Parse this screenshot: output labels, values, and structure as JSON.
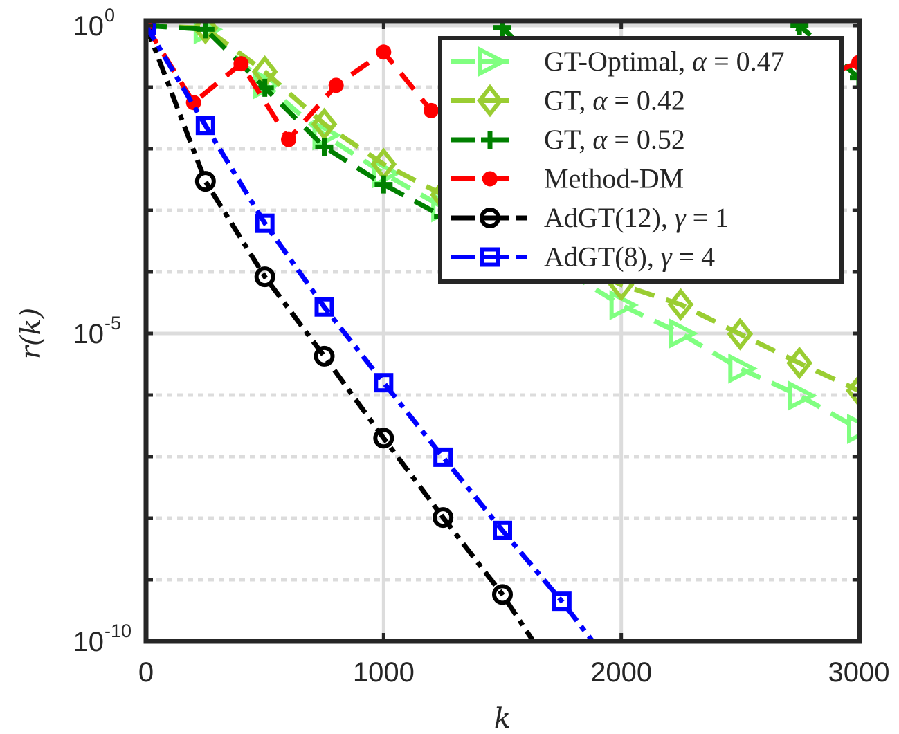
{
  "chart_data": {
    "type": "line",
    "title": "",
    "xlabel": "k",
    "ylabel": "r(k)",
    "xscale": "linear",
    "yscale": "log",
    "xlim": [
      0,
      3000
    ],
    "ylim_log10": [
      -10,
      0
    ],
    "x_ticks": [
      0,
      1000,
      2000,
      3000
    ],
    "x_tick_labels": [
      "0",
      "1000",
      "2000",
      "3000"
    ],
    "y_ticks_log10": [
      0,
      -5,
      -10
    ],
    "y_tick_labels": [
      {
        "base": "10",
        "exp": "0"
      },
      {
        "base": "10",
        "exp": "-5"
      },
      {
        "base": "10",
        "exp": "-10"
      }
    ],
    "minor_grid_log10": [
      -1,
      -2,
      -3,
      -4,
      -6,
      -7,
      -8,
      -9
    ],
    "grid": true,
    "legend_position": "top-right",
    "series": [
      {
        "name": "GT-Optimal, α = 0.47",
        "label_plain": "GT-Optimal, ",
        "label_var": "α",
        "label_rest": " = 0.47",
        "color": "#80ff80",
        "marker": "triangle-right",
        "line_style": "dashed",
        "x": [
          0,
          250,
          500,
          750,
          1000,
          1250,
          1500,
          1750,
          2000,
          2250,
          2500,
          2750,
          3000
        ],
        "log10_y": [
          0,
          -0.06,
          -0.95,
          -1.78,
          -2.4,
          -2.95,
          -3.45,
          -3.95,
          -4.54,
          -5.0,
          -5.57,
          -6.01,
          -6.55
        ]
      },
      {
        "name": "GT, α = 0.42",
        "label_plain": "GT, ",
        "label_var": "α",
        "label_rest": " = 0.42",
        "color": "#9acd32",
        "marker": "diamond",
        "line_style": "dashed",
        "x": [
          0,
          250,
          500,
          750,
          1000,
          1250,
          1500,
          1750,
          2000,
          2250,
          2500,
          2750,
          3000
        ],
        "log10_y": [
          0,
          -0.04,
          -0.75,
          -1.6,
          -2.25,
          -2.75,
          -3.3,
          -3.75,
          -4.21,
          -4.53,
          -5.01,
          -5.48,
          -5.93
        ]
      },
      {
        "name": "GT, α = 0.52",
        "label_plain": "GT, ",
        "label_var": "α",
        "label_rest": " = 0.52",
        "color": "#008000",
        "marker": "plus",
        "line_style": "dashed",
        "x": [
          0,
          250,
          500,
          750,
          1000,
          1250,
          1500,
          1750,
          2000,
          2250,
          2500,
          2750,
          3000
        ],
        "log10_y": [
          0,
          -0.06,
          -1.01,
          -1.97,
          -2.58,
          -3.1,
          -0.03,
          -1.0,
          -2.0,
          -2.6,
          -3.1,
          0.0,
          -0.85
        ]
      },
      {
        "name": "Method-DM",
        "label_plain": "Method-DM",
        "label_var": "",
        "label_rest": "",
        "color": "#ff0000",
        "marker": "circle-filled",
        "line_style": "dashed",
        "x": [
          0,
          200,
          400,
          600,
          800,
          1000,
          1200,
          1400,
          1600,
          1800,
          2000,
          2200,
          2400,
          2600,
          2800,
          3000
        ],
        "log10_y": [
          0,
          -1.25,
          -0.62,
          -1.85,
          -0.97,
          -0.43,
          -1.38,
          -0.7,
          -1.2,
          -0.9,
          -1.1,
          -0.8,
          -1.0,
          -0.7,
          -0.9,
          -0.6
        ]
      },
      {
        "name": "AdGT(12), γ = 1",
        "label_plain": "AdGT(12), ",
        "label_var": "γ",
        "label_rest": " = 1",
        "color": "#000000",
        "marker": "circle-open",
        "line_style": "dashdot",
        "x": [
          0,
          250,
          500,
          750,
          1000,
          1250,
          1500,
          1630
        ],
        "log10_y": [
          0,
          -2.53,
          -4.08,
          -5.37,
          -6.7,
          -7.99,
          -9.24,
          -10.0
        ],
        "marker_indices": [
          0,
          1,
          2,
          3,
          4,
          5,
          6
        ]
      },
      {
        "name": "AdGT(8), γ = 4",
        "label_plain": "AdGT(8), ",
        "label_var": "γ",
        "label_rest": " = 4",
        "color": "#0000ff",
        "marker": "square-open",
        "line_style": "dashdot",
        "x": [
          0,
          250,
          500,
          750,
          1000,
          1250,
          1500,
          1750,
          1880
        ],
        "log10_y": [
          0,
          -1.62,
          -3.21,
          -4.57,
          -5.8,
          -7.01,
          -8.2,
          -9.35,
          -10.0
        ],
        "marker_indices": [
          0,
          1,
          2,
          3,
          4,
          5,
          6,
          7
        ]
      }
    ]
  }
}
